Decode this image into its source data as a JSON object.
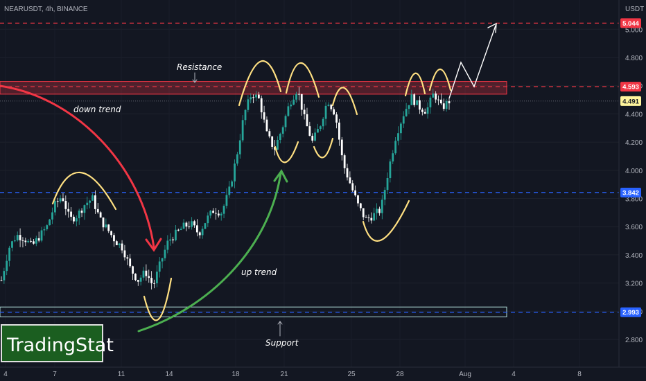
{
  "header": {
    "symbol_line": "NEARUSDT, 4h, BINANCE",
    "currency": "USDT"
  },
  "branding": {
    "logo_text": "TradingStat"
  },
  "colors": {
    "background": "#131722",
    "up_candle": "#26a69a",
    "down_candle": "#ffffff",
    "resistance": "#f23645",
    "support_line": "#2962ff",
    "support_zone": "#b2dfdb",
    "arc_down": "#f23645",
    "arc_up": "#4caf50",
    "highlight_curves": "#ffe082",
    "logo_bg": "#1b5e20",
    "logo_border": "#e0e0e0"
  },
  "chart_data": {
    "type": "candlestick",
    "title": "NEARUSDT, 4h, BINANCE",
    "y_axis_unit": "USDT",
    "ylim": [
      2.7,
      5.1
    ],
    "y_ticks": [
      "2.800",
      "3.000",
      "3.200",
      "3.400",
      "3.600",
      "3.800",
      "4.000",
      "4.200",
      "4.400",
      "4.600",
      "4.800",
      "5.000"
    ],
    "x_ticks": [
      "4",
      "7",
      "11",
      "14",
      "18",
      "21",
      "25",
      "28",
      "Aug",
      "4",
      "8"
    ],
    "price_labels": [
      {
        "text": "5.044",
        "value": 5.044,
        "style": "red"
      },
      {
        "text": "4.593",
        "value": 4.593,
        "style": "red"
      },
      {
        "text": "4.491",
        "value": 4.491,
        "style": "yellow"
      },
      {
        "text": "3.842",
        "value": 3.842,
        "style": "blue"
      },
      {
        "text": "2.993",
        "value": 2.993,
        "style": "blue"
      }
    ],
    "levels": [
      {
        "value": 5.044,
        "style": "red-dashed"
      },
      {
        "value": 4.593,
        "style": "red-dashed"
      },
      {
        "value": 3.842,
        "style": "blue-dashed"
      },
      {
        "value": 2.993,
        "style": "blue-dashed"
      }
    ],
    "zones": [
      {
        "name": "Resistance",
        "from": 4.54,
        "to": 4.63
      },
      {
        "name": "Support",
        "from": 2.96,
        "to": 3.03
      }
    ],
    "annotations": [
      "Resistance",
      "down trend",
      "up trend",
      "Support"
    ],
    "trend_path": [
      [
        0,
        3.22
      ],
      [
        1,
        3.45
      ],
      [
        2,
        3.54
      ],
      [
        3,
        3.52
      ],
      [
        4,
        3.46
      ],
      [
        5,
        3.53
      ],
      [
        6,
        3.6
      ],
      [
        7,
        3.75
      ],
      [
        8,
        3.82
      ],
      [
        9,
        3.65
      ],
      [
        10,
        3.68
      ],
      [
        11,
        3.76
      ],
      [
        12,
        3.8
      ],
      [
        13,
        3.65
      ],
      [
        14,
        3.58
      ],
      [
        15,
        3.5
      ],
      [
        16,
        3.45
      ],
      [
        17,
        3.3
      ],
      [
        18,
        3.22
      ],
      [
        19,
        3.28
      ],
      [
        20,
        3.18
      ],
      [
        21,
        3.35
      ],
      [
        22,
        3.5
      ],
      [
        23,
        3.55
      ],
      [
        24,
        3.6
      ],
      [
        25,
        3.62
      ],
      [
        26,
        3.55
      ],
      [
        27,
        3.65
      ],
      [
        28,
        3.72
      ],
      [
        29,
        3.7
      ],
      [
        30,
        3.85
      ],
      [
        31,
        4.1
      ],
      [
        32,
        4.4
      ],
      [
        33,
        4.55
      ],
      [
        34,
        4.5
      ],
      [
        35,
        4.25
      ],
      [
        36,
        4.15
      ],
      [
        37,
        4.3
      ],
      [
        38,
        4.48
      ],
      [
        39,
        4.58
      ],
      [
        40,
        4.35
      ],
      [
        41,
        4.2
      ],
      [
        42,
        4.32
      ],
      [
        43,
        4.5
      ],
      [
        44,
        4.4
      ],
      [
        45,
        4.05
      ],
      [
        46,
        3.9
      ],
      [
        47,
        3.75
      ],
      [
        48,
        3.65
      ],
      [
        49,
        3.68
      ],
      [
        50,
        3.72
      ],
      [
        51,
        4.0
      ],
      [
        52,
        4.25
      ],
      [
        53,
        4.4
      ],
      [
        54,
        4.52
      ],
      [
        55,
        4.45
      ],
      [
        56,
        4.42
      ],
      [
        57,
        4.55
      ],
      [
        58,
        4.44
      ],
      [
        59,
        4.49
      ]
    ]
  }
}
